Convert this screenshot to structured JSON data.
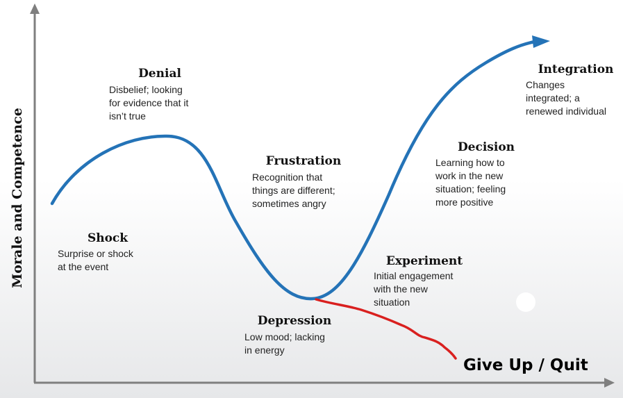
{
  "axis_label": "Morale and Competence",
  "stages": [
    {
      "title": "Denial",
      "description": [
        "Disbelief; looking",
        "for evidence that it",
        "isn’t true"
      ]
    },
    {
      "title": "Frustration",
      "description": [
        "Recognition that",
        "things are different;",
        "sometimes angry"
      ]
    },
    {
      "title": "Shock",
      "description": [
        "Surprise or shock",
        "at the event"
      ]
    },
    {
      "title": "Depression",
      "description": [
        "Low mood; lacking",
        "in energy"
      ]
    },
    {
      "title": "Experiment",
      "description": [
        "Initial engagement",
        "with the new",
        "situation"
      ]
    },
    {
      "title": "Decision",
      "description": [
        "Learning how to",
        "work in the new",
        "situation; feeling",
        "more positive"
      ]
    },
    {
      "title": "Integration",
      "description": [
        "Changes",
        "integrated; a",
        "renewed individual"
      ]
    }
  ],
  "give_up_label": "Give Up / Quit"
}
